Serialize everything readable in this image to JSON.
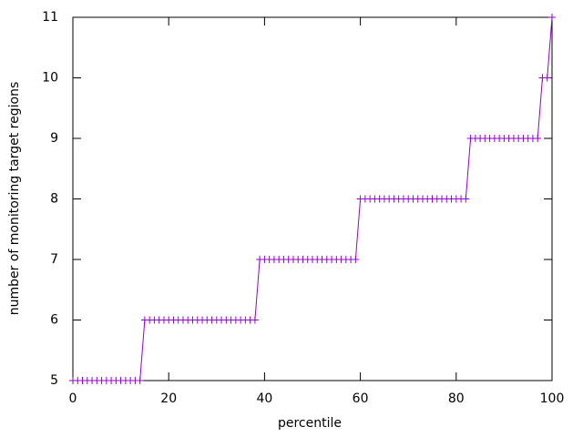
{
  "chart_data": {
    "type": "line",
    "x_label": "percentile",
    "y_label": "number of monitoring target regions",
    "x": [
      0,
      1,
      2,
      3,
      4,
      5,
      6,
      7,
      8,
      9,
      10,
      11,
      12,
      13,
      14,
      15,
      16,
      17,
      18,
      19,
      20,
      21,
      22,
      23,
      24,
      25,
      26,
      27,
      28,
      29,
      30,
      31,
      32,
      33,
      34,
      35,
      36,
      37,
      38,
      39,
      40,
      41,
      42,
      43,
      44,
      45,
      46,
      47,
      48,
      49,
      50,
      51,
      52,
      53,
      54,
      55,
      56,
      57,
      58,
      59,
      60,
      61,
      62,
      63,
      64,
      65,
      66,
      67,
      68,
      69,
      70,
      71,
      72,
      73,
      74,
      75,
      76,
      77,
      78,
      79,
      80,
      81,
      82,
      83,
      84,
      85,
      86,
      87,
      88,
      89,
      90,
      91,
      92,
      93,
      94,
      95,
      96,
      97,
      98,
      99,
      100
    ],
    "series": [
      {
        "color": "#9400d3",
        "marker": "+",
        "values": [
          5,
          5,
          5,
          5,
          5,
          5,
          5,
          5,
          5,
          5,
          5,
          5,
          5,
          5,
          5,
          6,
          6,
          6,
          6,
          6,
          6,
          6,
          6,
          6,
          6,
          6,
          6,
          6,
          6,
          6,
          6,
          6,
          6,
          6,
          6,
          6,
          6,
          6,
          6,
          7,
          7,
          7,
          7,
          7,
          7,
          7,
          7,
          7,
          7,
          7,
          7,
          7,
          7,
          7,
          7,
          7,
          7,
          7,
          7,
          7,
          8,
          8,
          8,
          8,
          8,
          8,
          8,
          8,
          8,
          8,
          8,
          8,
          8,
          8,
          8,
          8,
          8,
          8,
          8,
          8,
          8,
          8,
          8,
          9,
          9,
          9,
          9,
          9,
          9,
          9,
          9,
          9,
          9,
          9,
          9,
          9,
          9,
          9,
          10,
          10,
          11
        ]
      }
    ],
    "xlim": [
      0,
      100
    ],
    "xticks": [
      0,
      20,
      40,
      60,
      80,
      100
    ],
    "ylim": [
      5,
      11
    ],
    "yticks": [
      5,
      6,
      7,
      8,
      9,
      10,
      11
    ]
  }
}
